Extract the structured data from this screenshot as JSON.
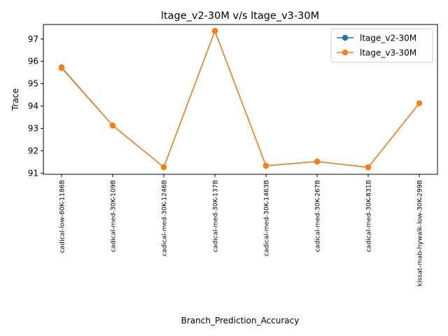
{
  "chart_data": {
    "type": "line",
    "title": "ltage_v2-30M v/s ltage_v3-30M",
    "xlabel": "Branch_Prediction_Accuracy",
    "ylabel": "Trace",
    "ylim": [
      90.95,
      97.65
    ],
    "yticks": [
      91,
      92,
      93,
      94,
      95,
      96,
      97
    ],
    "categories": [
      "cadical-low-60K-1186B",
      "cadical-med-30K-109B",
      "cadical-med-30K-1246B",
      "cadical-med-30K-137B",
      "cadical-med-30K-1463B",
      "cadical-med-30K-267B",
      "cadical-med-30K-831B",
      "kissat-mab-hywalk-low-30K-299B"
    ],
    "series": [
      {
        "name": "ltage_v2-30M",
        "color": "#1f77b4",
        "values": [
          95.73,
          93.13,
          91.27,
          97.36,
          91.33,
          91.52,
          91.26,
          94.13
        ]
      },
      {
        "name": "ltage_v3-30M",
        "color": "#ff7f0e",
        "values": [
          95.7,
          93.13,
          91.27,
          97.36,
          91.33,
          91.52,
          91.26,
          94.13
        ]
      }
    ],
    "legend": "top-right",
    "grid": false
  }
}
